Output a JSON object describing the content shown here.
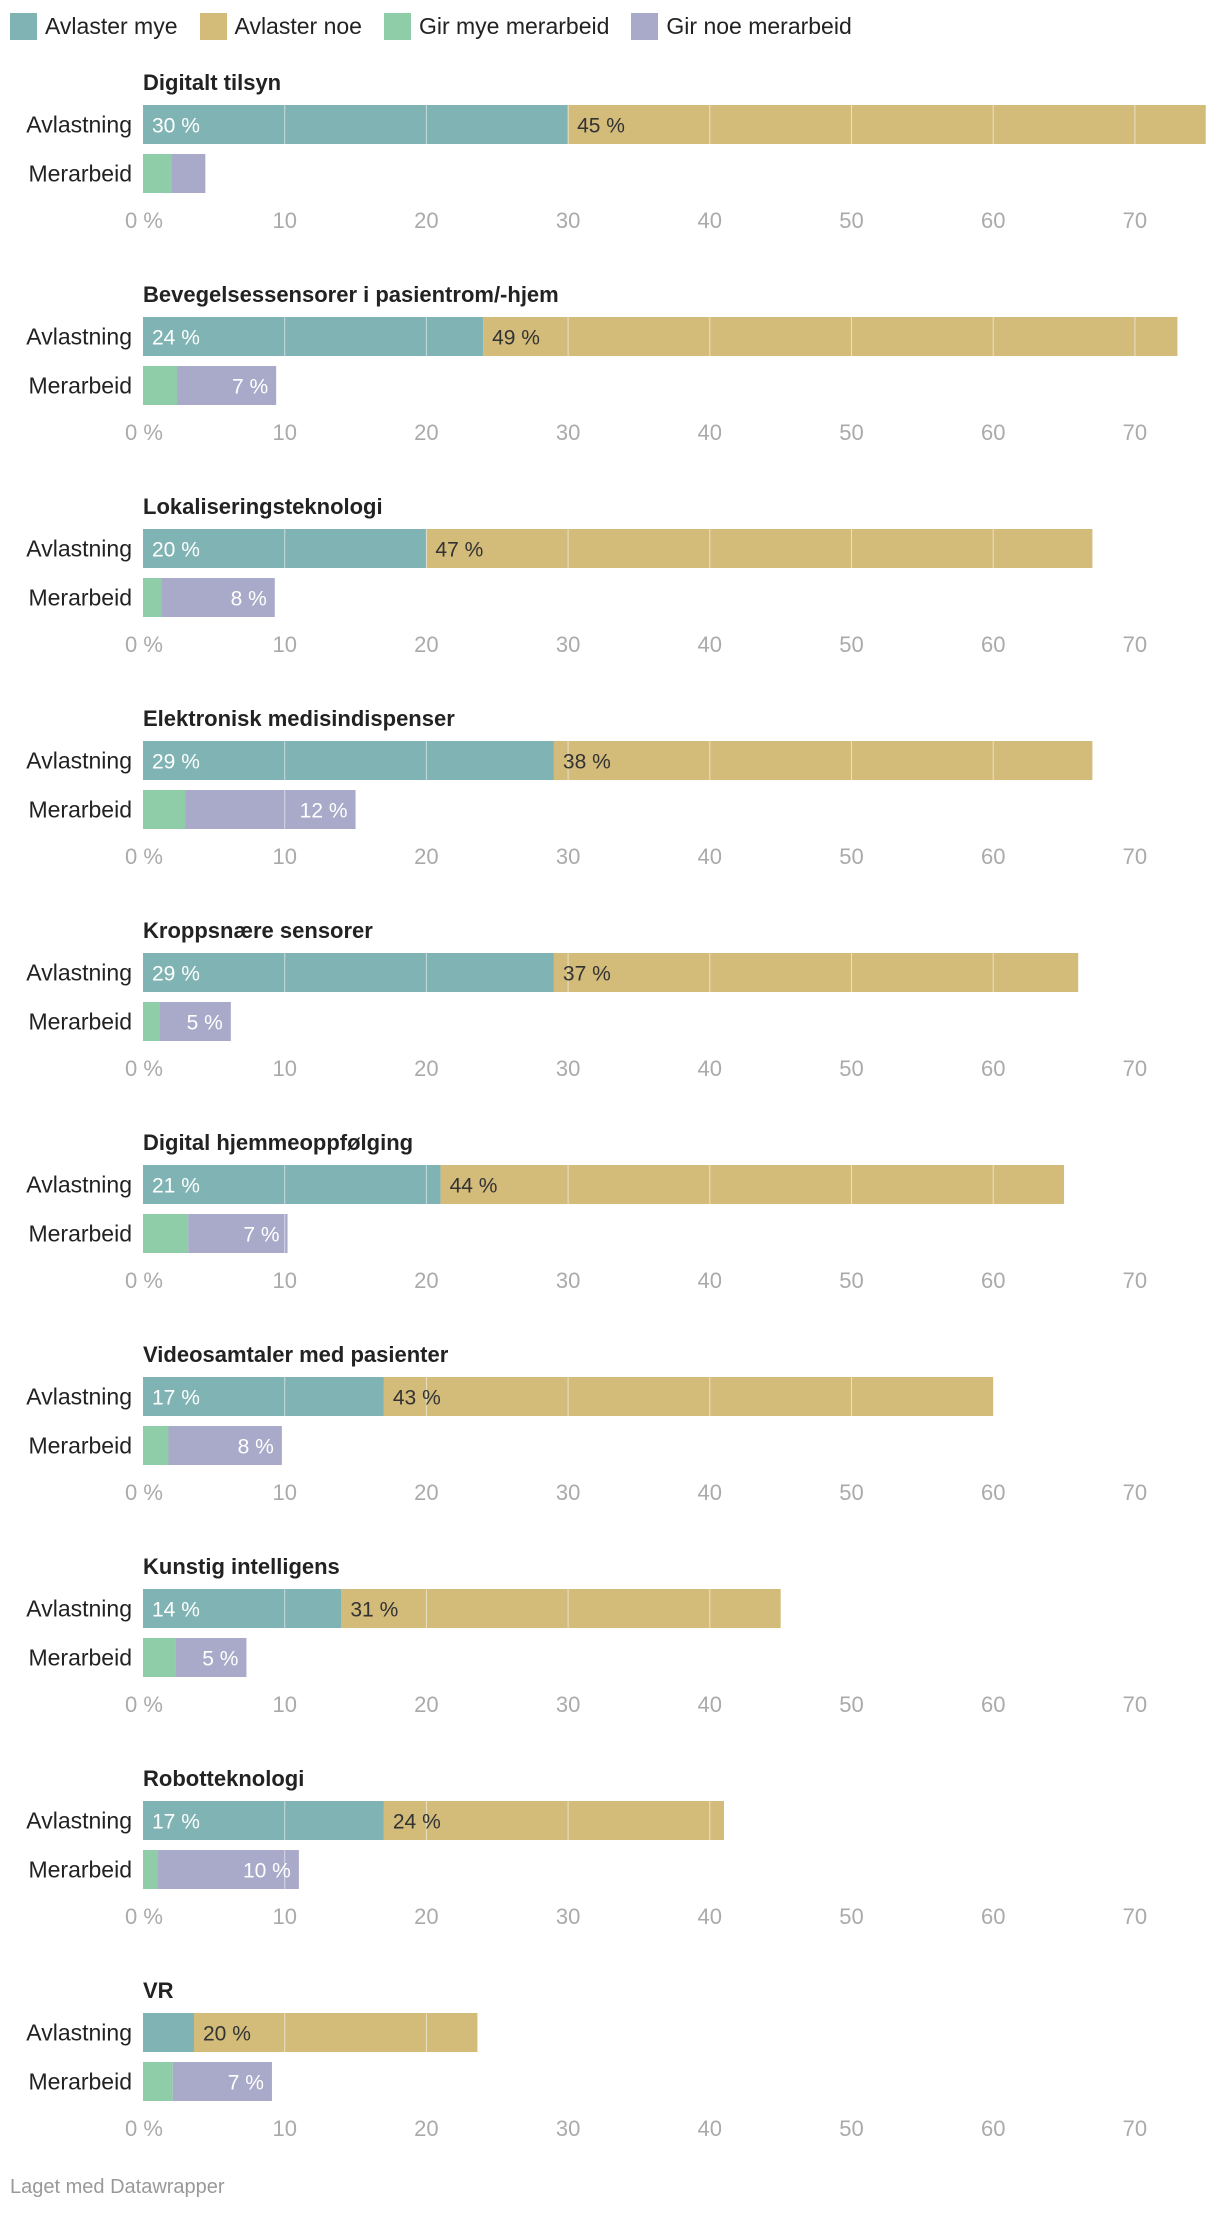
{
  "colors": {
    "avlaster_mye": "#80b3b3",
    "avlaster_noe": "#d3bb7a",
    "gir_mye_merarbeid": "#8fcca8",
    "gir_noe_merarbeid": "#a9a9c9",
    "gridline": "#ffffff",
    "tick": "#aaaaaa"
  },
  "legend": [
    {
      "label": "Avlaster mye",
      "color": "#80b3b3"
    },
    {
      "label": "Avlaster noe",
      "color": "#d3bb7a"
    },
    {
      "label": "Gir mye merarbeid",
      "color": "#8fcca8"
    },
    {
      "label": "Gir noe merarbeid",
      "color": "#a9a9c9"
    }
  ],
  "footer": "Laget med Datawrapper",
  "chart_data": {
    "type": "bar",
    "orientation": "horizontal",
    "stacked": true,
    "xlim": [
      0,
      75
    ],
    "xticks": [
      {
        "value": 0,
        "label": "0 %"
      },
      {
        "value": 10,
        "label": "10"
      },
      {
        "value": 20,
        "label": "20"
      },
      {
        "value": 30,
        "label": "30"
      },
      {
        "value": 40,
        "label": "40"
      },
      {
        "value": 50,
        "label": "50"
      },
      {
        "value": 60,
        "label": "60"
      },
      {
        "value": 70,
        "label": "70"
      }
    ],
    "row_labels": [
      "Avlastning",
      "Merarbeid"
    ],
    "panels": [
      {
        "title": "Digitalt tilsyn",
        "avlastning": [
          {
            "series": "Avlaster mye",
            "value": 30,
            "label": "30 %"
          },
          {
            "series": "Avlaster noe",
            "value": 45,
            "label": "45 %"
          }
        ],
        "merarbeid": [
          {
            "series": "Gir mye merarbeid",
            "value": 2,
            "label": ""
          },
          {
            "series": "Gir noe merarbeid",
            "value": 2.4,
            "label": ""
          }
        ]
      },
      {
        "title": "Bevegelsessensorer i pasientrom/-hjem",
        "avlastning": [
          {
            "series": "Avlaster mye",
            "value": 24,
            "label": "24 %"
          },
          {
            "series": "Avlaster noe",
            "value": 49,
            "label": "49 %"
          }
        ],
        "merarbeid": [
          {
            "series": "Gir mye merarbeid",
            "value": 2.4,
            "label": ""
          },
          {
            "series": "Gir noe merarbeid",
            "value": 7,
            "label": "7 %"
          }
        ]
      },
      {
        "title": "Lokaliseringsteknologi",
        "avlastning": [
          {
            "series": "Avlaster mye",
            "value": 20,
            "label": "20 %"
          },
          {
            "series": "Avlaster noe",
            "value": 47,
            "label": "47 %"
          }
        ],
        "merarbeid": [
          {
            "series": "Gir mye merarbeid",
            "value": 1.3,
            "label": ""
          },
          {
            "series": "Gir noe merarbeid",
            "value": 8,
            "label": "8 %"
          }
        ]
      },
      {
        "title": "Elektronisk medisindispenser",
        "avlastning": [
          {
            "series": "Avlaster mye",
            "value": 29,
            "label": "29 %"
          },
          {
            "series": "Avlaster noe",
            "value": 38,
            "label": "38 %"
          }
        ],
        "merarbeid": [
          {
            "series": "Gir mye merarbeid",
            "value": 3,
            "label": ""
          },
          {
            "series": "Gir noe merarbeid",
            "value": 12,
            "label": "12 %"
          }
        ]
      },
      {
        "title": "Kroppsnære sensorer",
        "avlastning": [
          {
            "series": "Avlaster mye",
            "value": 29,
            "label": "29 %"
          },
          {
            "series": "Avlaster noe",
            "value": 37,
            "label": "37 %"
          }
        ],
        "merarbeid": [
          {
            "series": "Gir mye merarbeid",
            "value": 1.2,
            "label": ""
          },
          {
            "series": "Gir noe merarbeid",
            "value": 5,
            "label": "5 %"
          }
        ]
      },
      {
        "title": "Digital hjemmeoppfølging",
        "avlastning": [
          {
            "series": "Avlaster mye",
            "value": 21,
            "label": "21 %"
          },
          {
            "series": "Avlaster noe",
            "value": 44,
            "label": "44 %"
          }
        ],
        "merarbeid": [
          {
            "series": "Gir mye merarbeid",
            "value": 3.2,
            "label": ""
          },
          {
            "series": "Gir noe merarbeid",
            "value": 7,
            "label": "7 %"
          }
        ]
      },
      {
        "title": "Videosamtaler med pasienter",
        "avlastning": [
          {
            "series": "Avlaster mye",
            "value": 17,
            "label": "17 %"
          },
          {
            "series": "Avlaster noe",
            "value": 43,
            "label": "43 %"
          }
        ],
        "merarbeid": [
          {
            "series": "Gir mye merarbeid",
            "value": 1.8,
            "label": ""
          },
          {
            "series": "Gir noe merarbeid",
            "value": 8,
            "label": "8 %"
          }
        ]
      },
      {
        "title": "Kunstig intelligens",
        "avlastning": [
          {
            "series": "Avlaster mye",
            "value": 14,
            "label": "14 %"
          },
          {
            "series": "Avlaster noe",
            "value": 31,
            "label": "31 %"
          }
        ],
        "merarbeid": [
          {
            "series": "Gir mye merarbeid",
            "value": 2.3,
            "label": ""
          },
          {
            "series": "Gir noe merarbeid",
            "value": 5,
            "label": "5 %"
          }
        ]
      },
      {
        "title": "Robotteknologi",
        "avlastning": [
          {
            "series": "Avlaster mye",
            "value": 17,
            "label": "17 %"
          },
          {
            "series": "Avlaster noe",
            "value": 24,
            "label": "24 %"
          }
        ],
        "merarbeid": [
          {
            "series": "Gir mye merarbeid",
            "value": 1,
            "label": ""
          },
          {
            "series": "Gir noe merarbeid",
            "value": 10,
            "label": "10 %"
          }
        ]
      },
      {
        "title": "VR",
        "avlastning": [
          {
            "series": "Avlaster mye",
            "value": 3.6,
            "label": ""
          },
          {
            "series": "Avlaster noe",
            "value": 20,
            "label": "20 %"
          }
        ],
        "merarbeid": [
          {
            "series": "Gir mye merarbeid",
            "value": 2.1,
            "label": ""
          },
          {
            "series": "Gir noe merarbeid",
            "value": 7,
            "label": "7 %"
          }
        ]
      }
    ]
  }
}
